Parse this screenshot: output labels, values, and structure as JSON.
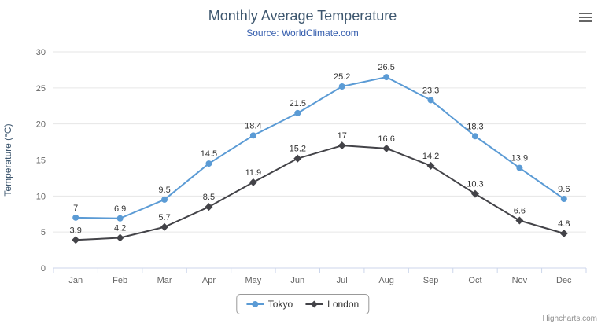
{
  "chart_data": {
    "type": "line",
    "title": "Monthly Average Temperature",
    "subtitle": "Source: WorldClimate.com",
    "xlabel": "",
    "ylabel": "Temperature (°C)",
    "categories": [
      "Jan",
      "Feb",
      "Mar",
      "Apr",
      "May",
      "Jun",
      "Jul",
      "Aug",
      "Sep",
      "Oct",
      "Nov",
      "Dec"
    ],
    "series": [
      {
        "name": "Tokyo",
        "marker": "circle",
        "color": "#5b9bd5",
        "values": [
          7,
          6.9,
          9.5,
          14.5,
          18.4,
          21.5,
          25.2,
          26.5,
          23.3,
          18.3,
          13.9,
          9.6
        ]
      },
      {
        "name": "London",
        "marker": "diamond",
        "color": "#434348",
        "values": [
          3.9,
          4.2,
          5.7,
          8.5,
          11.9,
          15.2,
          17,
          16.6,
          14.2,
          10.3,
          6.6,
          4.8
        ]
      }
    ],
    "ylim": [
      0,
      30
    ],
    "yticks": [
      0,
      5,
      10,
      15,
      20,
      25,
      30
    ],
    "grid": true,
    "legend_position": "bottom",
    "data_labels_shown": true,
    "colors": {
      "grid": "#e6e6e6",
      "axis_line": "#ccd6eb",
      "axis_labels": "#666666",
      "axis_title": "#3e576f",
      "data_labels": "#333333",
      "title": "#3e576f",
      "subtitle": "#335cad",
      "legend_border": "#999999"
    }
  },
  "header": {
    "menu_icon": "hamburger"
  },
  "credits": {
    "text": "Highcharts.com"
  }
}
